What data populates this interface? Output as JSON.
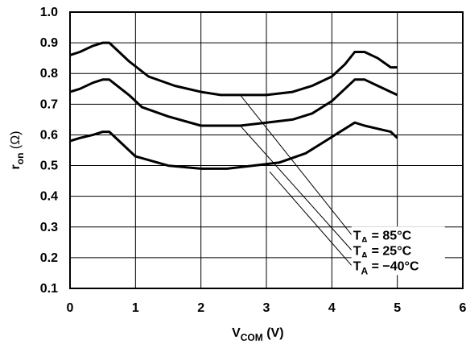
{
  "chart_data": {
    "type": "line",
    "xlabel": {
      "main": "V",
      "sub": "COM",
      "unit": " (V)"
    },
    "ylabel": {
      "main": "r",
      "sub": "on",
      "unit": " (Ω)"
    },
    "xlim": [
      0,
      6
    ],
    "ylim": [
      0.1,
      1.0
    ],
    "xticks": [
      "0",
      "1",
      "2",
      "3",
      "4",
      "5",
      "6"
    ],
    "yticks": [
      "0.1",
      "0.2",
      "0.3",
      "0.4",
      "0.5",
      "0.6",
      "0.7",
      "0.8",
      "0.9",
      "1.0"
    ],
    "grid": true,
    "series": [
      {
        "name": "T_A = 85°C",
        "label": {
          "main": "T",
          "sub": "A",
          "rest": " = 85°C"
        },
        "x": [
          0,
          0.15,
          0.35,
          0.5,
          0.6,
          0.9,
          1.2,
          1.6,
          2.0,
          2.3,
          2.6,
          3.0,
          3.4,
          3.7,
          4.0,
          4.2,
          4.35,
          4.5,
          4.7,
          4.9,
          5.0
        ],
        "y": [
          0.86,
          0.87,
          0.89,
          0.9,
          0.9,
          0.84,
          0.79,
          0.76,
          0.74,
          0.73,
          0.73,
          0.73,
          0.74,
          0.76,
          0.79,
          0.83,
          0.87,
          0.87,
          0.85,
          0.82,
          0.82
        ]
      },
      {
        "name": "T_A = 25°C",
        "label": {
          "main": "T",
          "sub": "A",
          "rest": " = 25°C"
        },
        "x": [
          0,
          0.15,
          0.35,
          0.5,
          0.6,
          0.9,
          1.1,
          1.5,
          2.0,
          2.3,
          2.6,
          3.0,
          3.4,
          3.7,
          4.0,
          4.2,
          4.35,
          4.5,
          4.7,
          4.9,
          5.0
        ],
        "y": [
          0.74,
          0.75,
          0.77,
          0.78,
          0.78,
          0.73,
          0.69,
          0.66,
          0.63,
          0.63,
          0.63,
          0.64,
          0.65,
          0.67,
          0.71,
          0.75,
          0.78,
          0.78,
          0.76,
          0.74,
          0.73
        ]
      },
      {
        "name": "T_A = −40°C",
        "label": {
          "main": "T",
          "sub": "A",
          "rest": " = −40°C"
        },
        "x": [
          0,
          0.15,
          0.35,
          0.5,
          0.6,
          0.8,
          1.0,
          1.5,
          2.0,
          2.4,
          2.8,
          3.2,
          3.6,
          3.9,
          4.2,
          4.35,
          4.5,
          4.7,
          4.9,
          5.0
        ],
        "y": [
          0.58,
          0.59,
          0.6,
          0.61,
          0.61,
          0.57,
          0.53,
          0.5,
          0.49,
          0.49,
          0.5,
          0.51,
          0.54,
          0.58,
          0.62,
          0.64,
          0.63,
          0.62,
          0.61,
          0.59
        ]
      }
    ],
    "annotations": [
      {
        "series": 0,
        "from": [
          2.6,
          0.73
        ],
        "to": [
          4.3,
          0.275
        ]
      },
      {
        "series": 1,
        "from": [
          2.6,
          0.63
        ],
        "to": [
          4.3,
          0.225
        ]
      },
      {
        "series": 2,
        "from": [
          3.05,
          0.48
        ],
        "to": [
          4.3,
          0.175
        ]
      }
    ]
  }
}
